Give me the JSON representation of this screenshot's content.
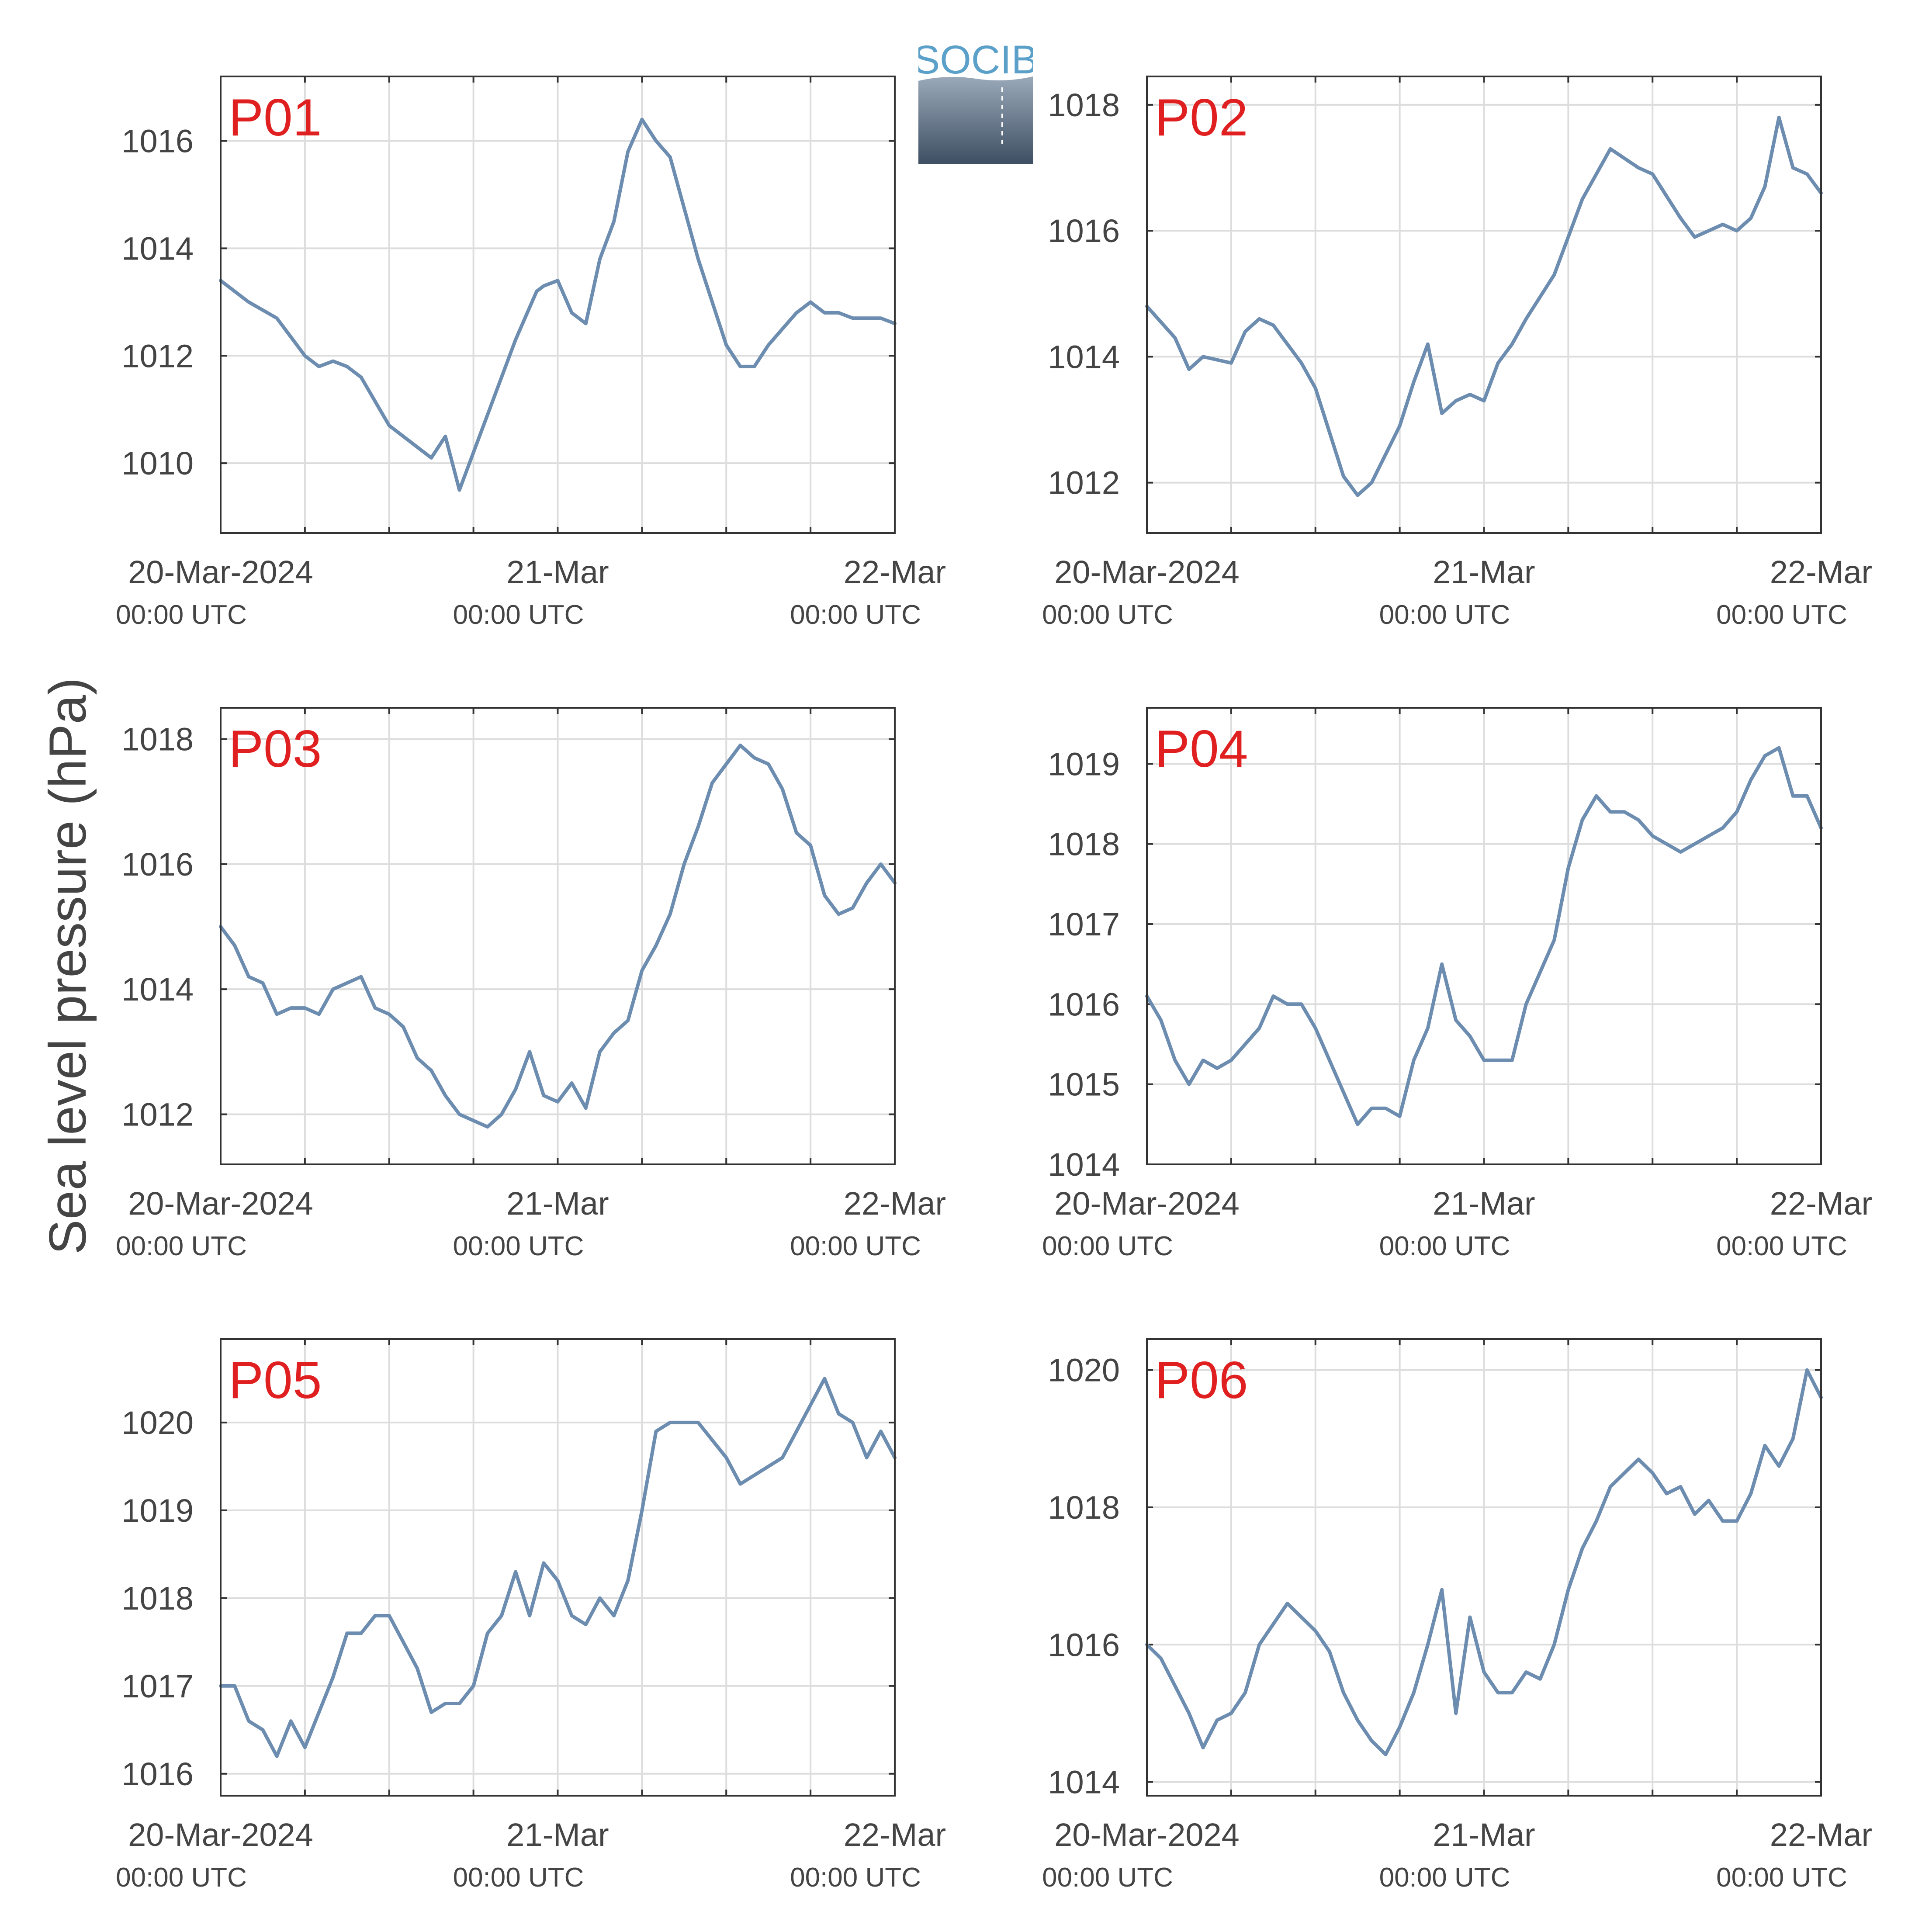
{
  "figure": {
    "ylabel": "Sea level pressure (hPa)",
    "logo_text": "SOCIB",
    "colors": {
      "line": "#6C8CB0",
      "panel_label": "#E02020",
      "grid": "#DDDDDD",
      "axis": "#333333",
      "tick_text": "#444444"
    }
  },
  "chart_data": [
    {
      "type": "line",
      "panel_label": "P01",
      "ylim": [
        1008.7,
        1017.2
      ],
      "yticks": [
        1010,
        1012,
        1014,
        1016
      ],
      "xlim": [
        "2024-03-20 00:00",
        "2024-03-22 00:00"
      ],
      "xticks": [
        {
          "label": "20-Mar-2024",
          "sub": "00:00 UTC"
        },
        {
          "label": "21-Mar",
          "sub": "00:00 UTC"
        },
        {
          "label": "22-Mar",
          "sub": "00:00 UTC"
        }
      ],
      "x": [
        "2024-03-20 00:00",
        "2024-03-20 02:00",
        "2024-03-20 04:00",
        "2024-03-20 06:00",
        "2024-03-20 07:00",
        "2024-03-20 08:00",
        "2024-03-20 09:00",
        "2024-03-20 10:00",
        "2024-03-20 12:00",
        "2024-03-20 14:00",
        "2024-03-20 15:00",
        "2024-03-20 16:00",
        "2024-03-20 17:00",
        "2024-03-20 18:00",
        "2024-03-20 19:00",
        "2024-03-20 20:00",
        "2024-03-20 21:00",
        "2024-03-20 22:00",
        "2024-03-20 22:30",
        "2024-03-20 23:00",
        "2024-03-21 00:00",
        "2024-03-21 01:00",
        "2024-03-21 02:00",
        "2024-03-21 03:00",
        "2024-03-21 04:00",
        "2024-03-21 05:00",
        "2024-03-21 06:00",
        "2024-03-21 07:00",
        "2024-03-21 08:00",
        "2024-03-21 10:00",
        "2024-03-21 12:00",
        "2024-03-21 13:00",
        "2024-03-21 14:00",
        "2024-03-21 15:00",
        "2024-03-21 16:00",
        "2024-03-21 17:00",
        "2024-03-21 18:00",
        "2024-03-21 19:00",
        "2024-03-21 20:00",
        "2024-03-21 21:00",
        "2024-03-21 23:00",
        "2024-03-22 00:00"
      ],
      "series": [
        {
          "values": [
            1013.4,
            1013.0,
            1012.7,
            1012.0,
            1011.8,
            1011.9,
            1011.8,
            1011.6,
            1010.7,
            1010.3,
            1010.1,
            1010.5,
            1009.5,
            1010.2,
            1010.9,
            1011.6,
            1012.3,
            1012.9,
            1013.2,
            1013.3,
            1013.4,
            1012.8,
            1012.6,
            1013.8,
            1014.5,
            1015.8,
            1016.4,
            1016.0,
            1015.7,
            1013.8,
            1012.2,
            1011.8,
            1011.8,
            1012.2,
            1012.5,
            1012.8,
            1013.0,
            1012.8,
            1012.8,
            1012.7,
            1012.7,
            1012.6
          ]
        }
      ]
    },
    {
      "type": "line",
      "panel_label": "P02",
      "ylim": [
        1011.2,
        1018.45
      ],
      "yticks": [
        1012,
        1014,
        1016,
        1018
      ],
      "xlim": [
        "2024-03-20 00:00",
        "2024-03-22 00:00"
      ],
      "xticks": [
        {
          "label": "20-Mar-2024",
          "sub": "00:00 UTC"
        },
        {
          "label": "21-Mar",
          "sub": "00:00 UTC"
        },
        {
          "label": "22-Mar",
          "sub": "00:00 UTC"
        }
      ],
      "x": [
        "2024-03-20 00:00",
        "2024-03-20 02:00",
        "2024-03-20 03:00",
        "2024-03-20 04:00",
        "2024-03-20 06:00",
        "2024-03-20 07:00",
        "2024-03-20 08:00",
        "2024-03-20 09:00",
        "2024-03-20 10:00",
        "2024-03-20 11:00",
        "2024-03-20 12:00",
        "2024-03-20 13:00",
        "2024-03-20 14:00",
        "2024-03-20 15:00",
        "2024-03-20 16:00",
        "2024-03-20 18:00",
        "2024-03-20 19:00",
        "2024-03-20 20:00",
        "2024-03-20 21:00",
        "2024-03-20 22:00",
        "2024-03-20 23:00",
        "2024-03-21 00:00",
        "2024-03-21 01:00",
        "2024-03-21 02:00",
        "2024-03-21 03:00",
        "2024-03-21 05:00",
        "2024-03-21 07:00",
        "2024-03-21 09:00",
        "2024-03-21 11:00",
        "2024-03-21 12:00",
        "2024-03-21 14:00",
        "2024-03-21 15:00",
        "2024-03-21 17:00",
        "2024-03-21 18:00",
        "2024-03-21 19:00",
        "2024-03-21 20:00",
        "2024-03-21 21:00",
        "2024-03-21 22:00",
        "2024-03-21 23:00",
        "2024-03-22 00:00"
      ],
      "series": [
        {
          "values": [
            1014.8,
            1014.3,
            1013.8,
            1014.0,
            1013.9,
            1014.4,
            1014.6,
            1014.5,
            1014.2,
            1013.9,
            1013.5,
            1012.8,
            1012.1,
            1011.8,
            1012.0,
            1012.9,
            1013.6,
            1014.2,
            1013.1,
            1013.3,
            1013.4,
            1013.3,
            1013.9,
            1014.2,
            1014.6,
            1015.3,
            1016.5,
            1017.3,
            1017.0,
            1016.9,
            1016.2,
            1015.9,
            1016.1,
            1016.0,
            1016.2,
            1016.7,
            1017.8,
            1017.0,
            1016.9,
            1016.6
          ]
        }
      ]
    },
    {
      "type": "line",
      "panel_label": "P03",
      "ylim": [
        1011.2,
        1018.5
      ],
      "yticks": [
        1012,
        1014,
        1016,
        1018
      ],
      "xlim": [
        "2024-03-20 00:00",
        "2024-03-22 00:00"
      ],
      "xticks": [
        {
          "label": "20-Mar-2024",
          "sub": "00:00 UTC"
        },
        {
          "label": "21-Mar",
          "sub": "00:00 UTC"
        },
        {
          "label": "22-Mar",
          "sub": "00:00 UTC"
        }
      ],
      "x": [
        "2024-03-20 00:00",
        "2024-03-20 01:00",
        "2024-03-20 02:00",
        "2024-03-20 03:00",
        "2024-03-20 04:00",
        "2024-03-20 05:00",
        "2024-03-20 06:00",
        "2024-03-20 07:00",
        "2024-03-20 08:00",
        "2024-03-20 09:00",
        "2024-03-20 10:00",
        "2024-03-20 11:00",
        "2024-03-20 12:00",
        "2024-03-20 13:00",
        "2024-03-20 14:00",
        "2024-03-20 15:00",
        "2024-03-20 16:00",
        "2024-03-20 17:00",
        "2024-03-20 18:00",
        "2024-03-20 19:00",
        "2024-03-20 20:00",
        "2024-03-20 21:00",
        "2024-03-20 22:00",
        "2024-03-20 23:00",
        "2024-03-21 00:00",
        "2024-03-21 01:00",
        "2024-03-21 02:00",
        "2024-03-21 03:00",
        "2024-03-21 04:00",
        "2024-03-21 05:00",
        "2024-03-21 06:00",
        "2024-03-21 07:00",
        "2024-03-21 08:00",
        "2024-03-21 09:00",
        "2024-03-21 10:00",
        "2024-03-21 11:00",
        "2024-03-21 12:00",
        "2024-03-21 13:00",
        "2024-03-21 14:00",
        "2024-03-21 15:00",
        "2024-03-21 16:00",
        "2024-03-21 17:00",
        "2024-03-21 18:00",
        "2024-03-21 19:00",
        "2024-03-21 20:00",
        "2024-03-21 21:00",
        "2024-03-21 22:00",
        "2024-03-21 23:00",
        "2024-03-22 00:00"
      ],
      "series": [
        {
          "values": [
            1015.0,
            1014.7,
            1014.2,
            1014.1,
            1013.6,
            1013.7,
            1013.7,
            1013.6,
            1014.0,
            1014.1,
            1014.2,
            1013.7,
            1013.6,
            1013.4,
            1012.9,
            1012.7,
            1012.3,
            1012.0,
            1011.9,
            1011.8,
            1012.0,
            1012.4,
            1013.0,
            1012.3,
            1012.2,
            1012.5,
            1012.1,
            1013.0,
            1013.3,
            1013.5,
            1014.3,
            1014.7,
            1015.2,
            1016.0,
            1016.6,
            1017.3,
            1017.6,
            1017.9,
            1017.7,
            1017.6,
            1017.2,
            1016.5,
            1016.3,
            1015.5,
            1015.2,
            1015.3,
            1015.7,
            1016.0,
            1015.7
          ]
        }
      ]
    },
    {
      "type": "line",
      "panel_label": "P04",
      "ylim": [
        1014.0,
        1019.7
      ],
      "yticks": [
        1014,
        1015,
        1016,
        1017,
        1018,
        1019
      ],
      "xlim": [
        "2024-03-20 00:00",
        "2024-03-22 00:00"
      ],
      "xticks": [
        {
          "label": "20-Mar-2024",
          "sub": "00:00 UTC"
        },
        {
          "label": "21-Mar",
          "sub": "00:00 UTC"
        },
        {
          "label": "22-Mar",
          "sub": "00:00 UTC"
        }
      ],
      "x": [
        "2024-03-20 00:00",
        "2024-03-20 01:00",
        "2024-03-20 02:00",
        "2024-03-20 03:00",
        "2024-03-20 04:00",
        "2024-03-20 05:00",
        "2024-03-20 06:00",
        "2024-03-20 07:00",
        "2024-03-20 08:00",
        "2024-03-20 09:00",
        "2024-03-20 10:00",
        "2024-03-20 11:00",
        "2024-03-20 12:00",
        "2024-03-20 13:00",
        "2024-03-20 14:00",
        "2024-03-20 15:00",
        "2024-03-20 16:00",
        "2024-03-20 17:00",
        "2024-03-20 18:00",
        "2024-03-20 19:00",
        "2024-03-20 20:00",
        "2024-03-20 21:00",
        "2024-03-20 22:00",
        "2024-03-20 23:00",
        "2024-03-21 00:00",
        "2024-03-21 01:00",
        "2024-03-21 02:00",
        "2024-03-21 03:00",
        "2024-03-21 04:00",
        "2024-03-21 05:00",
        "2024-03-21 06:00",
        "2024-03-21 07:00",
        "2024-03-21 08:00",
        "2024-03-21 09:00",
        "2024-03-21 10:00",
        "2024-03-21 11:00",
        "2024-03-21 12:00",
        "2024-03-21 13:00",
        "2024-03-21 14:00",
        "2024-03-21 15:00",
        "2024-03-21 16:00",
        "2024-03-21 17:00",
        "2024-03-21 18:00",
        "2024-03-21 19:00",
        "2024-03-21 20:00",
        "2024-03-21 21:00",
        "2024-03-21 22:00",
        "2024-03-21 23:00",
        "2024-03-22 00:00"
      ],
      "series": [
        {
          "values": [
            1016.1,
            1015.8,
            1015.3,
            1015.0,
            1015.3,
            1015.2,
            1015.3,
            1015.5,
            1015.7,
            1016.1,
            1016.0,
            1016.0,
            1015.7,
            1015.3,
            1014.9,
            1014.5,
            1014.7,
            1014.7,
            1014.6,
            1015.3,
            1015.7,
            1016.5,
            1015.8,
            1015.6,
            1015.3,
            1015.3,
            1015.3,
            1016.0,
            1016.4,
            1016.8,
            1017.7,
            1018.3,
            1018.6,
            1018.4,
            1018.4,
            1018.3,
            1018.1,
            1018.0,
            1017.9,
            1018.0,
            1018.1,
            1018.2,
            1018.4,
            1018.8,
            1019.1,
            1019.2,
            1018.6,
            1018.6,
            1018.2
          ]
        }
      ]
    },
    {
      "type": "line",
      "panel_label": "P05",
      "ylim": [
        1015.75,
        1020.95
      ],
      "yticks": [
        1016,
        1017,
        1018,
        1019,
        1020
      ],
      "xlim": [
        "2024-03-20 00:00",
        "2024-03-22 00:00"
      ],
      "xticks": [
        {
          "label": "20-Mar-2024",
          "sub": "00:00 UTC"
        },
        {
          "label": "21-Mar",
          "sub": "00:00 UTC"
        },
        {
          "label": "22-Mar",
          "sub": "00:00 UTC"
        }
      ],
      "x": [
        "2024-03-20 00:00",
        "2024-03-20 01:00",
        "2024-03-20 02:00",
        "2024-03-20 03:00",
        "2024-03-20 04:00",
        "2024-03-20 05:00",
        "2024-03-20 06:00",
        "2024-03-20 07:00",
        "2024-03-20 08:00",
        "2024-03-20 09:00",
        "2024-03-20 10:00",
        "2024-03-20 11:00",
        "2024-03-20 12:00",
        "2024-03-20 13:00",
        "2024-03-20 14:00",
        "2024-03-20 15:00",
        "2024-03-20 16:00",
        "2024-03-20 17:00",
        "2024-03-20 18:00",
        "2024-03-20 19:00",
        "2024-03-20 20:00",
        "2024-03-20 21:00",
        "2024-03-20 22:00",
        "2024-03-20 23:00",
        "2024-03-21 00:00",
        "2024-03-21 01:00",
        "2024-03-21 02:00",
        "2024-03-21 03:00",
        "2024-03-21 04:00",
        "2024-03-21 05:00",
        "2024-03-21 06:00",
        "2024-03-21 07:00",
        "2024-03-21 08:00",
        "2024-03-21 09:00",
        "2024-03-21 10:00",
        "2024-03-21 11:00",
        "2024-03-21 12:00",
        "2024-03-21 13:00",
        "2024-03-21 14:00",
        "2024-03-21 15:00",
        "2024-03-21 16:00",
        "2024-03-21 17:00",
        "2024-03-21 18:00",
        "2024-03-21 19:00",
        "2024-03-21 20:00",
        "2024-03-21 21:00",
        "2024-03-21 22:00",
        "2024-03-21 23:00",
        "2024-03-22 00:00"
      ],
      "series": [
        {
          "values": [
            1017.0,
            1017.0,
            1016.6,
            1016.5,
            1016.2,
            1016.6,
            1016.3,
            1016.7,
            1017.1,
            1017.6,
            1017.6,
            1017.8,
            1017.8,
            1017.5,
            1017.2,
            1016.7,
            1016.8,
            1016.8,
            1017.0,
            1017.6,
            1017.8,
            1018.3,
            1017.8,
            1018.4,
            1018.2,
            1017.8,
            1017.7,
            1018.0,
            1017.8,
            1018.2,
            1019.0,
            1019.9,
            1020.0,
            1020.0,
            1020.0,
            1019.8,
            1019.6,
            1019.3,
            1019.4,
            1019.5,
            1019.6,
            1019.9,
            1020.2,
            1020.5,
            1020.1,
            1020.0,
            1019.6,
            1019.9,
            1019.6
          ]
        }
      ]
    },
    {
      "type": "line",
      "panel_label": "P06",
      "ylim": [
        1013.8,
        1020.45
      ],
      "yticks": [
        1014,
        1016,
        1018,
        1020
      ],
      "xlim": [
        "2024-03-20 00:00",
        "2024-03-22 00:00"
      ],
      "xticks": [
        {
          "label": "20-Mar-2024",
          "sub": "00:00 UTC"
        },
        {
          "label": "21-Mar",
          "sub": "00:00 UTC"
        },
        {
          "label": "22-Mar",
          "sub": "00:00 UTC"
        }
      ],
      "x": [
        "2024-03-20 00:00",
        "2024-03-20 01:00",
        "2024-03-20 02:00",
        "2024-03-20 03:00",
        "2024-03-20 04:00",
        "2024-03-20 05:00",
        "2024-03-20 06:00",
        "2024-03-20 07:00",
        "2024-03-20 08:00",
        "2024-03-20 09:00",
        "2024-03-20 10:00",
        "2024-03-20 11:00",
        "2024-03-20 12:00",
        "2024-03-20 13:00",
        "2024-03-20 14:00",
        "2024-03-20 15:00",
        "2024-03-20 16:00",
        "2024-03-20 17:00",
        "2024-03-20 18:00",
        "2024-03-20 19:00",
        "2024-03-20 20:00",
        "2024-03-20 21:00",
        "2024-03-20 22:00",
        "2024-03-20 23:00",
        "2024-03-21 00:00",
        "2024-03-21 01:00",
        "2024-03-21 02:00",
        "2024-03-21 03:00",
        "2024-03-21 04:00",
        "2024-03-21 05:00",
        "2024-03-21 06:00",
        "2024-03-21 07:00",
        "2024-03-21 08:00",
        "2024-03-21 09:00",
        "2024-03-21 10:00",
        "2024-03-21 11:00",
        "2024-03-21 12:00",
        "2024-03-21 13:00",
        "2024-03-21 14:00",
        "2024-03-21 15:00",
        "2024-03-21 16:00",
        "2024-03-21 17:00",
        "2024-03-21 18:00",
        "2024-03-21 19:00",
        "2024-03-21 20:00",
        "2024-03-21 21:00",
        "2024-03-21 22:00",
        "2024-03-21 23:00",
        "2024-03-22 00:00"
      ],
      "series": [
        {
          "values": [
            1016.0,
            1015.8,
            1015.4,
            1015.0,
            1014.5,
            1014.9,
            1015.0,
            1015.3,
            1016.0,
            1016.3,
            1016.6,
            1016.4,
            1016.2,
            1015.9,
            1015.3,
            1014.9,
            1014.6,
            1014.4,
            1014.8,
            1015.3,
            1016.0,
            1016.8,
            1015.0,
            1016.4,
            1015.6,
            1015.3,
            1015.3,
            1015.6,
            1015.5,
            1016.0,
            1016.8,
            1017.4,
            1017.8,
            1018.3,
            1018.5,
            1018.7,
            1018.5,
            1018.2,
            1018.3,
            1017.9,
            1018.1,
            1017.8,
            1017.8,
            1018.2,
            1018.9,
            1018.6,
            1019.0,
            1020.0,
            1019.6
          ]
        }
      ]
    }
  ]
}
